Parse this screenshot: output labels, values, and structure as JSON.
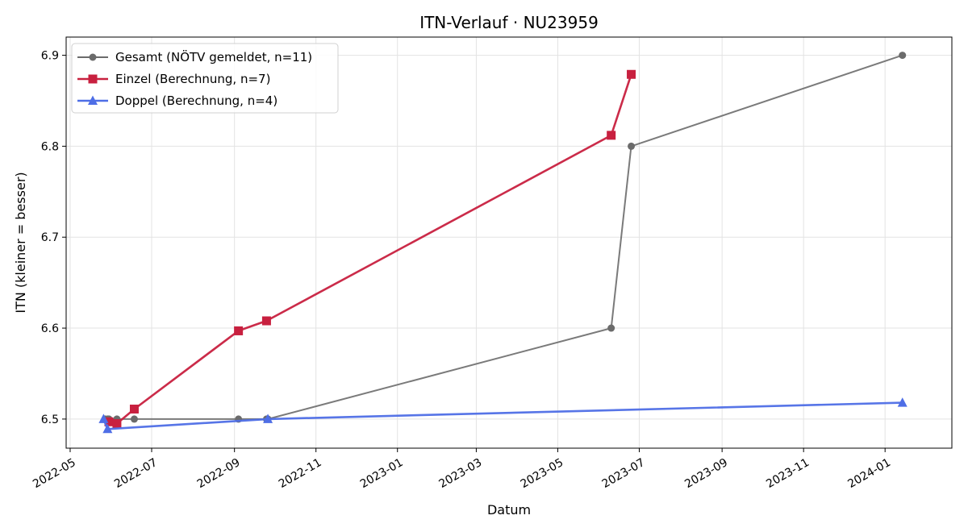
{
  "chart_data": {
    "type": "line",
    "title": "ITN-Verlauf · NU23959",
    "xlabel": "Datum",
    "ylabel": "ITN  (kleiner = besser)",
    "x_ticks": [
      "2022-05",
      "2022-07",
      "2022-09",
      "2022-11",
      "2023-01",
      "2023-03",
      "2023-05",
      "2023-07",
      "2023-09",
      "2023-11",
      "2024-01"
    ],
    "y_ticks": [
      "6.5",
      "6.6",
      "6.7",
      "6.8",
      "6.9"
    ],
    "xlim": [
      "2022-04-28",
      "2024-02-20"
    ],
    "ylim": [
      6.468,
      6.92
    ],
    "grid": true,
    "legend_position": "top-left",
    "series": [
      {
        "name": "Gesamt (NÖTV gemeldet, n=11)",
        "color": "#6b6b6b",
        "marker": "circle",
        "points": [
          {
            "x": "2022-05-27",
            "y": 6.5
          },
          {
            "x": "2022-05-29",
            "y": 6.5
          },
          {
            "x": "2022-05-30",
            "y": 6.5
          },
          {
            "x": "2022-06-05",
            "y": 6.5
          },
          {
            "x": "2022-06-18",
            "y": 6.5
          },
          {
            "x": "2022-09-04",
            "y": 6.5
          },
          {
            "x": "2022-09-25",
            "y": 6.5
          },
          {
            "x": "2022-09-26",
            "y": 6.5
          },
          {
            "x": "2023-06-10",
            "y": 6.6
          },
          {
            "x": "2023-06-25",
            "y": 6.8
          },
          {
            "x": "2024-01-14",
            "y": 6.9
          }
        ]
      },
      {
        "name": "Einzel (Berechnung, n=7)",
        "color": "#c8203f",
        "marker": "square",
        "points": [
          {
            "x": "2022-05-30",
            "y": 6.497
          },
          {
            "x": "2022-06-05",
            "y": 6.495
          },
          {
            "x": "2022-06-18",
            "y": 6.511
          },
          {
            "x": "2022-09-04",
            "y": 6.597
          },
          {
            "x": "2022-09-25",
            "y": 6.608
          },
          {
            "x": "2023-06-10",
            "y": 6.812
          },
          {
            "x": "2023-06-25",
            "y": 6.879
          }
        ]
      },
      {
        "name": "Doppel (Berechnung, n=4)",
        "color": "#4e6ee6",
        "marker": "triangle",
        "points": [
          {
            "x": "2022-05-26",
            "y": 6.5
          },
          {
            "x": "2022-05-29",
            "y": 6.489
          },
          {
            "x": "2022-09-26",
            "y": 6.5
          },
          {
            "x": "2024-01-14",
            "y": 6.518
          }
        ]
      }
    ]
  }
}
